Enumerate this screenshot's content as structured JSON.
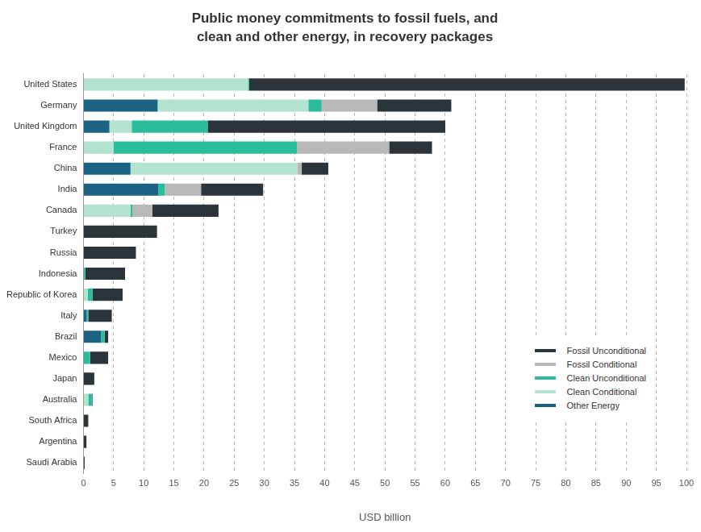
{
  "chart_data": {
    "type": "bar",
    "orientation": "horizontal",
    "stacked": true,
    "title": [
      "Public money commitments to fossil fuels, and",
      "clean and other energy, in recovery packages"
    ],
    "x_label": "USD billion",
    "categories": [
      "United States",
      "Germany",
      "United Kingdom",
      "France",
      "China",
      "India",
      "Canada",
      "Turkey",
      "Russia",
      "Indonesia",
      "Republic of Korea",
      "Italy",
      "Brazil",
      "Mexico",
      "Japan",
      "Australia",
      "South Africa",
      "Argentina",
      "Saudi Arabia"
    ],
    "series": [
      {
        "name": "Other Energy",
        "color": "#1c6383",
        "values": [
          0,
          12.3,
          4.3,
          0,
          7.8,
          12.4,
          0,
          0,
          0,
          0,
          0,
          0.5,
          2.9,
          0,
          0,
          0,
          0,
          0,
          0
        ]
      },
      {
        "name": "Clean Conditional",
        "color": "#b2e3cf",
        "values": [
          27.3,
          25,
          3.7,
          5,
          27.7,
          0,
          7.8,
          0,
          0,
          0,
          0.7,
          0,
          0,
          0,
          0,
          0.8,
          0,
          0,
          0
        ]
      },
      {
        "name": "Clean Unconditional",
        "color": "#2bbd9b",
        "values": [
          0.2,
          2.2,
          12.6,
          30.4,
          0,
          1.1,
          0.3,
          0,
          0,
          0.3,
          0.8,
          0.3,
          0.6,
          1.1,
          0,
          0.6,
          0,
          0,
          0
        ]
      },
      {
        "name": "Fossil Conditional",
        "color": "#b8b8b8",
        "values": [
          0,
          9.2,
          0,
          15.3,
          0.7,
          6,
          3.3,
          0,
          0,
          0,
          0,
          0,
          0,
          0,
          0,
          0,
          0,
          0,
          0
        ]
      },
      {
        "name": "Fossil Unconditional",
        "color": "#2a3439",
        "values": [
          72.2,
          12.3,
          39.4,
          7.1,
          4.4,
          10.3,
          11,
          12.2,
          8.7,
          6.6,
          5,
          3.9,
          0.6,
          3,
          1.8,
          0.1,
          0.8,
          0.5,
          0.2
        ]
      }
    ],
    "xlim": [
      0,
      100
    ],
    "xticks": [
      0,
      5,
      10,
      15,
      20,
      25,
      30,
      35,
      40,
      45,
      50,
      55,
      60,
      65,
      70,
      75,
      80,
      85,
      90,
      95,
      100
    ],
    "grid": true,
    "legend": "lower right"
  }
}
